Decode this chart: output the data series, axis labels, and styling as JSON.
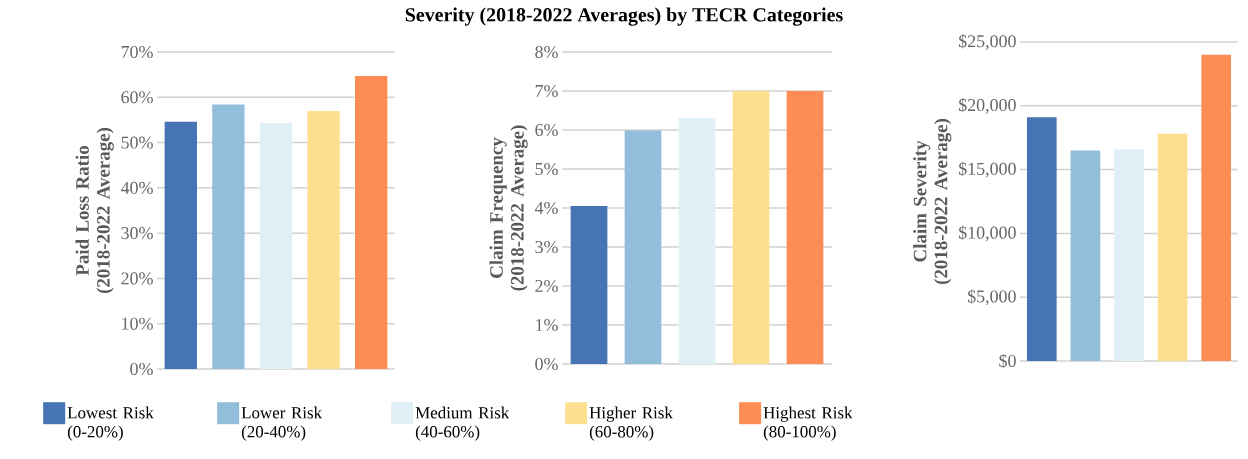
{
  "chart_data": [
    {
      "type": "bar",
      "ylabel": "Paid Loss Ratio (2018-2022 Average)",
      "categories": [
        null
      ],
      "series": [
        {
          "name": "Lowest Risk (0-20%)",
          "color": "#4674b5",
          "values": [
            54.6
          ]
        },
        {
          "name": "Lower Risk (20-40%)",
          "color": "#92bddb",
          "values": [
            58.4
          ]
        },
        {
          "name": "Medium Risk (40-60%)",
          "color": "#dff0f7",
          "values": [
            54.3
          ]
        },
        {
          "name": "Higher Risk (60-80%)",
          "color": "#fedf8f",
          "values": [
            57.0
          ]
        },
        {
          "name": "Highest Risk (80-100%)",
          "color": "#fd8d55",
          "values": [
            64.7
          ]
        }
      ],
      "ylim": [
        0,
        70
      ],
      "yticks": [
        {
          "value": 0,
          "label": "0%"
        },
        {
          "value": 10,
          "label": "10%"
        },
        {
          "value": 20,
          "label": "20%"
        },
        {
          "value": 30,
          "label": "30%"
        },
        {
          "value": 40,
          "label": "40%"
        },
        {
          "value": 50,
          "label": "50%"
        },
        {
          "value": 60,
          "label": "60%"
        },
        {
          "value": 70,
          "label": "70%"
        }
      ],
      "grid": "y",
      "legend": "bottom"
    },
    {
      "type": "bar",
      "title": "Severity (2018-2022 Averages) by TECR Categories",
      "ylabel": "Claim Frequency (2018-2022 Average)",
      "categories": [
        null
      ],
      "series": [
        {
          "color": "#4674b5",
          "values": [
            4.05
          ]
        },
        {
          "color": "#92bddb",
          "values": [
            5.99
          ]
        },
        {
          "color": "#dff0f7",
          "values": [
            6.31
          ]
        },
        {
          "color": "#fedf8f",
          "values": [
            7.0
          ]
        },
        {
          "color": "#fd8d55",
          "values": [
            7.0
          ]
        }
      ],
      "ylim": [
        0,
        8
      ],
      "yticks": [
        {
          "value": 0,
          "label": "0%"
        },
        {
          "value": 1,
          "label": "1%"
        },
        {
          "value": 2,
          "label": "2%"
        },
        {
          "value": 3,
          "label": "3%"
        },
        {
          "value": 4,
          "label": "4%"
        },
        {
          "value": 5,
          "label": "5%"
        },
        {
          "value": 6,
          "label": "6%"
        },
        {
          "value": 7,
          "label": "7%"
        },
        {
          "value": 8,
          "label": "8%"
        }
      ],
      "grid": "y"
    },
    {
      "type": "bar",
      "ylabel": "Claim Severity (2018-2022 Average)",
      "categories": [
        null
      ],
      "series": [
        {
          "color": "#4674b5",
          "values": [
            19100
          ]
        },
        {
          "color": "#92bddb",
          "values": [
            16500
          ]
        },
        {
          "color": "#dff0f7",
          "values": [
            16600
          ]
        },
        {
          "color": "#fedf8f",
          "values": [
            17800
          ]
        },
        {
          "color": "#fd8d55",
          "values": [
            24000
          ]
        }
      ],
      "ylim": [
        0,
        25000
      ],
      "yticks": [
        {
          "value": 0,
          "label": "$0"
        },
        {
          "value": 5000,
          "label": "$5,000"
        },
        {
          "value": 10000,
          "label": "$10,000"
        },
        {
          "value": 15000,
          "label": "$15,000"
        },
        {
          "value": 20000,
          "label": "$20,000"
        },
        {
          "value": 25000,
          "label": "$25,000"
        }
      ],
      "grid": "y"
    }
  ]
}
